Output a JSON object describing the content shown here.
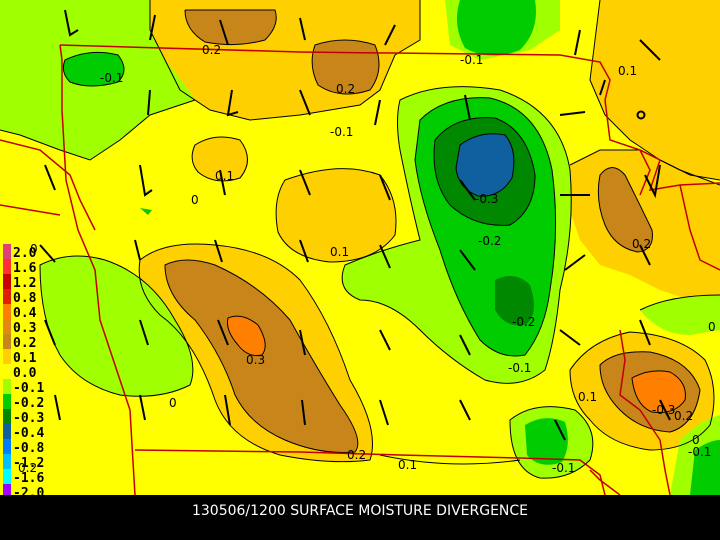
{
  "caption": "130506/1200 SURFACE MOISTURE DIVERGENCE",
  "legend": {
    "entries": [
      {
        "label": "2.0",
        "color": "#e0407a"
      },
      {
        "label": "1.6",
        "color": "#ff3030"
      },
      {
        "label": "1.2",
        "color": "#c80000"
      },
      {
        "label": "0.8",
        "color": "#e02000"
      },
      {
        "label": "0.4",
        "color": "#ff8000"
      },
      {
        "label": "0.3",
        "color": "#e08a10"
      },
      {
        "label": "0.2",
        "color": "#c8861a"
      },
      {
        "label": "0.1",
        "color": "#ffd000"
      },
      {
        "label": "0.0",
        "color": "#ffff00"
      },
      {
        "label": "-0.1",
        "color": "#a0ff00"
      },
      {
        "label": "-0.2",
        "color": "#00cc00"
      },
      {
        "label": "-0.3",
        "color": "#008800"
      },
      {
        "label": "-0.4",
        "color": "#1060a0"
      },
      {
        "label": "-0.8",
        "color": "#0080ff"
      },
      {
        "label": "-1.2",
        "color": "#00c0ff"
      },
      {
        "label": "-1.6",
        "color": "#00ffff"
      },
      {
        "label": "-2.0",
        "color": "#a000ff"
      }
    ]
  },
  "contour_labels": [
    "0.2",
    "-0.1",
    "0.2",
    "-0.1",
    "0.1",
    "-0.1",
    "0",
    "0.1",
    "-0.3",
    "-0.2",
    "0.1",
    "0.2",
    "0",
    "0.3",
    "-0.2",
    "0",
    "-0.1",
    "0.1",
    "-0.3",
    "0.2",
    "0",
    "0.2",
    "0.1",
    "-0.1",
    "0",
    "-0.1",
    "0.2"
  ],
  "colors": {
    "background": "#000000",
    "border": "#c00000",
    "contour": "#000000",
    "text": "#ffffff"
  }
}
